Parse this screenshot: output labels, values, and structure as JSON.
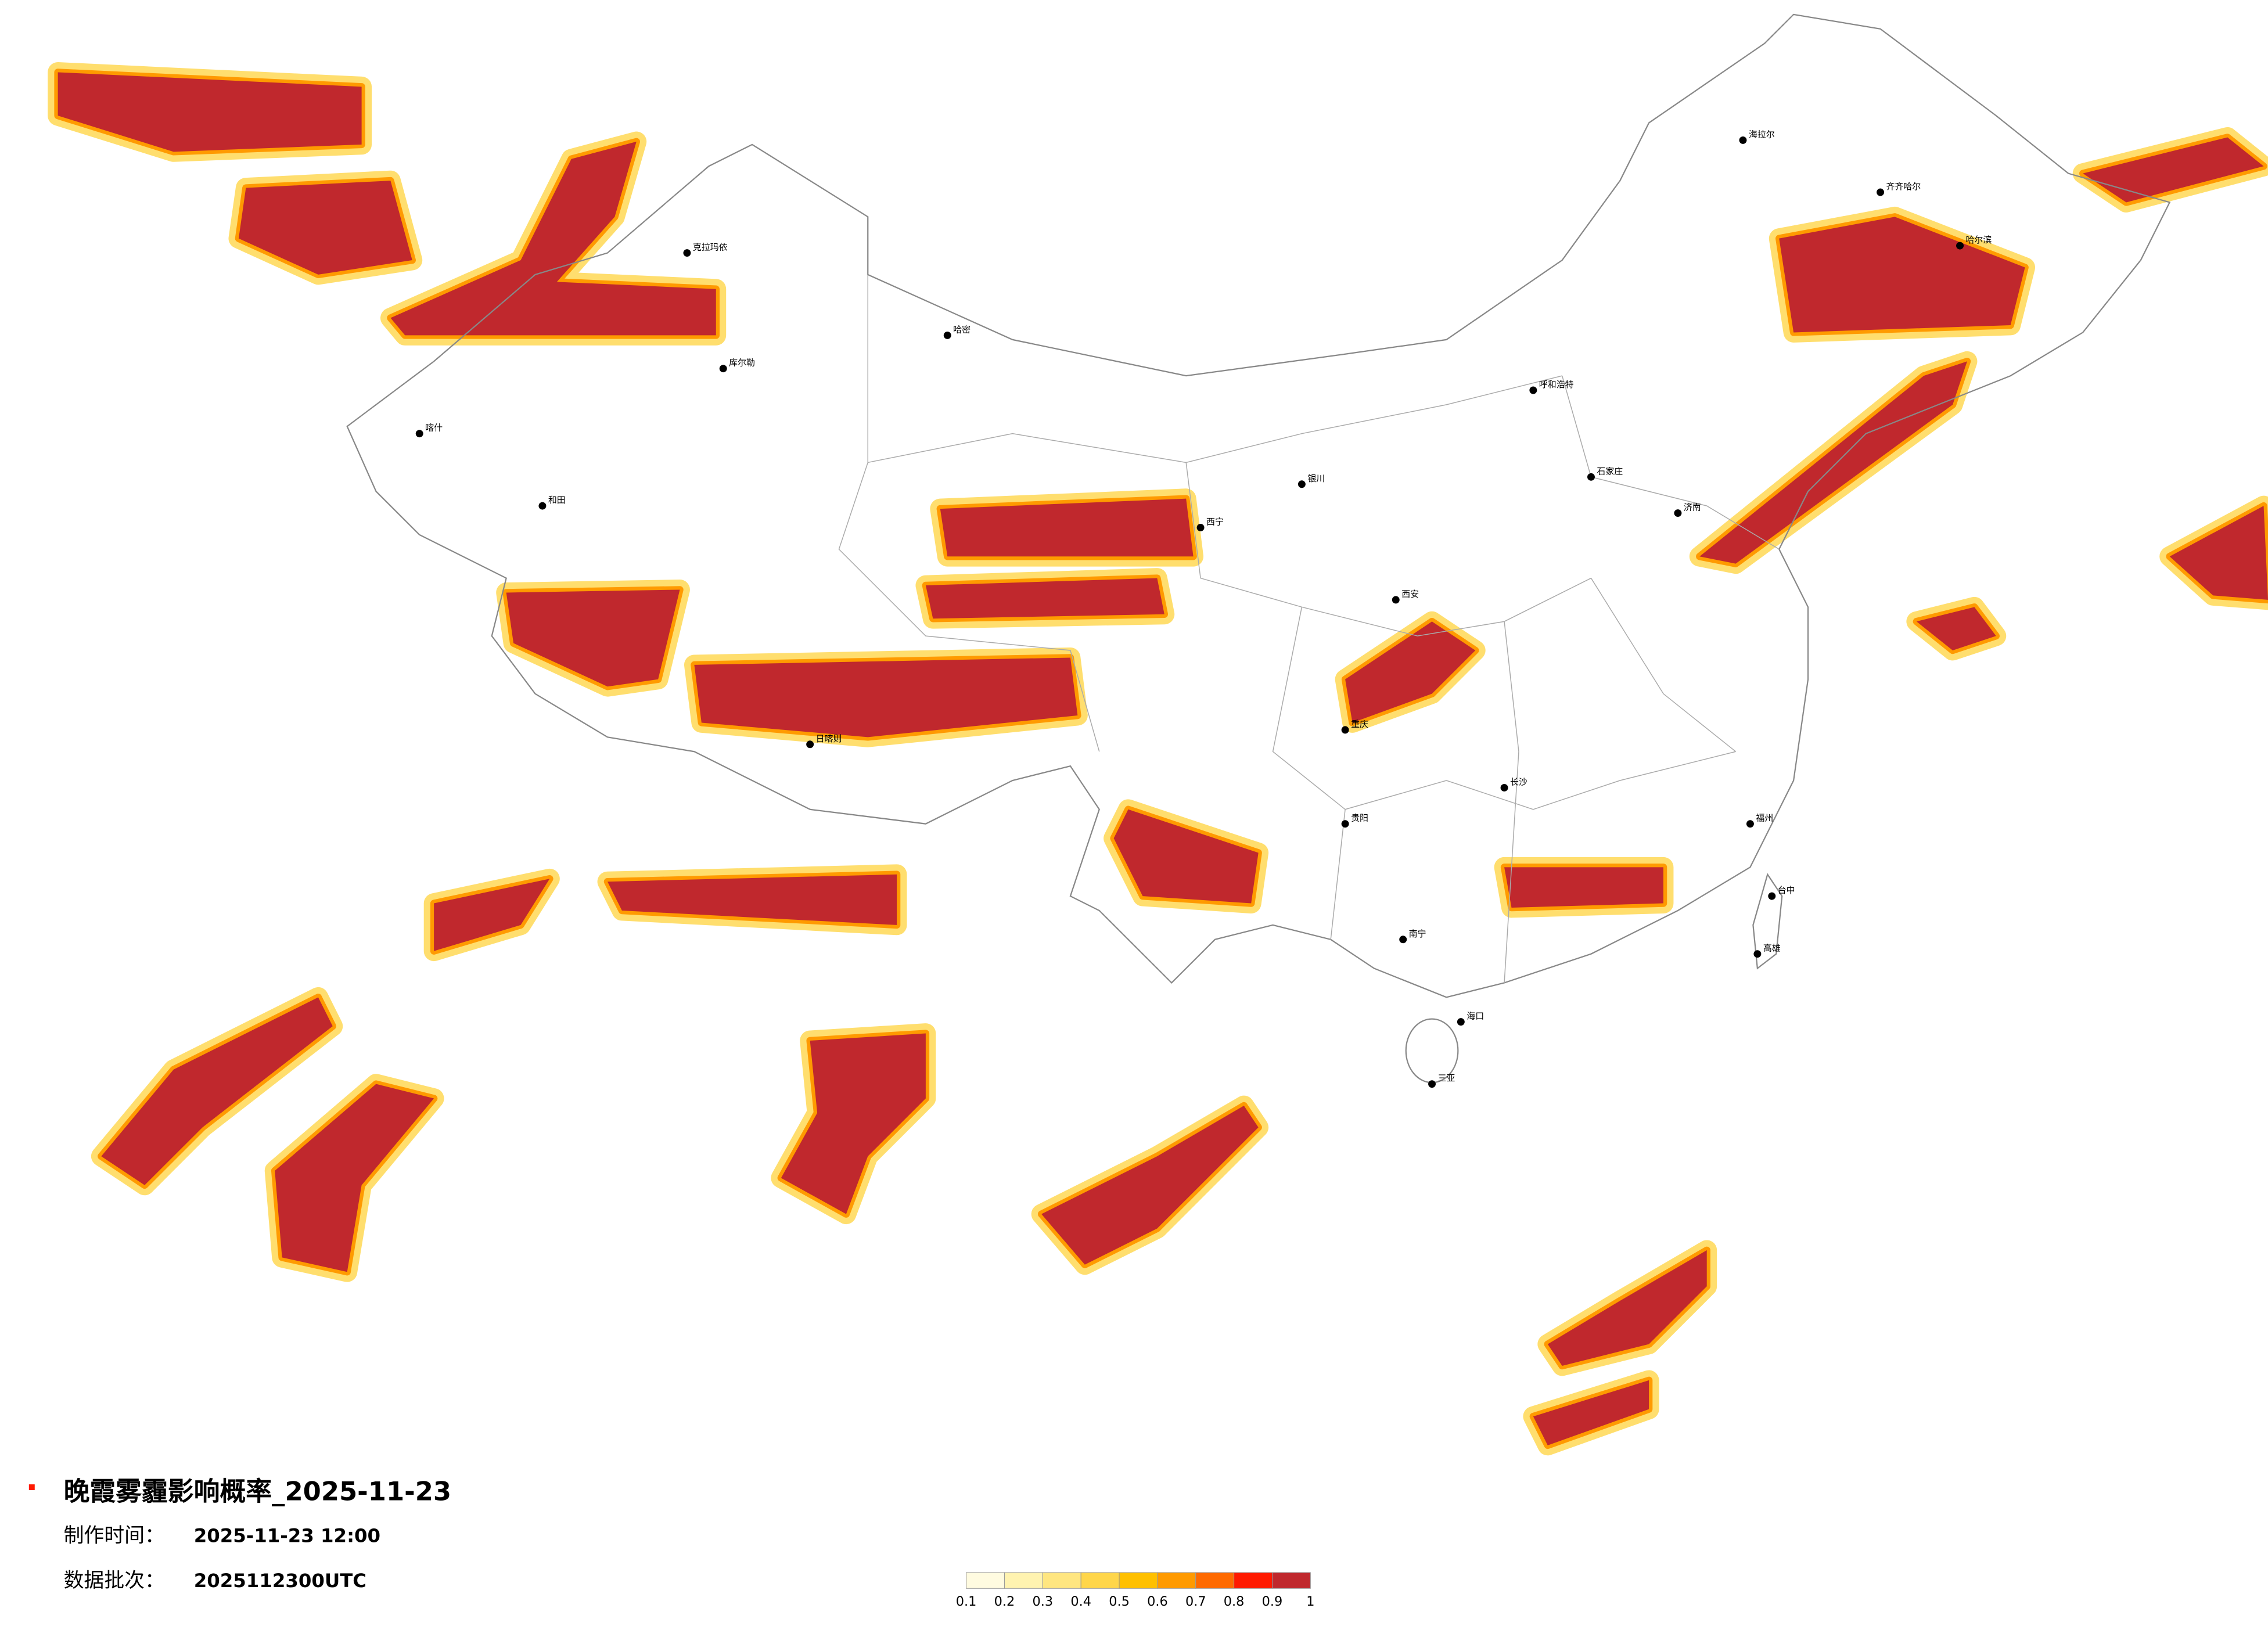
{
  "title": "晚霞雾霾影响概率_2025-11-23",
  "info": [
    {
      "label": "制作时间：",
      "value": "2025-11-23 12:00"
    },
    {
      "label": "数据批次：",
      "value": "2025112300UTC"
    }
  ],
  "legend": {
    "ticks": [
      0.1,
      0.2,
      0.3,
      0.4,
      0.5,
      0.6,
      0.7,
      0.8,
      0.9,
      1
    ],
    "colors": [
      "#fffbe0",
      "#fff3b0",
      "#ffe680",
      "#ffd64a",
      "#ffc000",
      "#ff9a00",
      "#ff6a00",
      "#ff1a00",
      "#c0282d"
    ]
  },
  "cities": [
    "克拉玛依",
    "喀什",
    "和田",
    "库尔勒",
    "哈密",
    "日喀则",
    "西宁",
    "海拉尔",
    "齐齐哈尔",
    "哈尔滨",
    "呼和浩特",
    "石家庄",
    "西安",
    "重庆",
    "贵阳",
    "南宁",
    "海口",
    "三亚",
    "台中",
    "高雄",
    "福州",
    "长沙",
    "银川",
    "济南"
  ]
}
